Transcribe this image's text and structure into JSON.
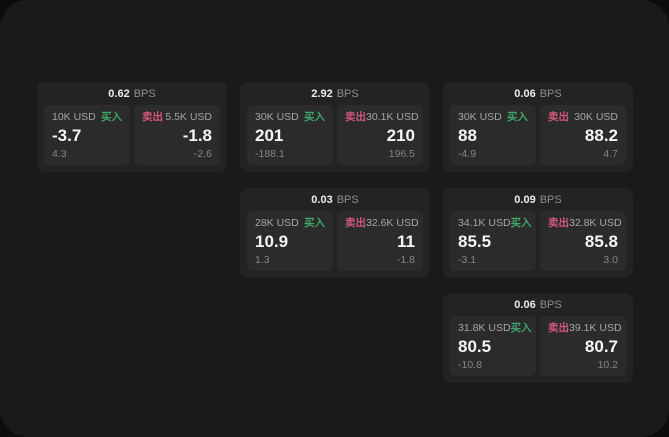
{
  "labels": {
    "buy": "买入",
    "sell": "卖出",
    "bps_unit": "BPS"
  },
  "colors": {
    "page_bg": "#0d0d0e",
    "window_bg": "#1a1a1b",
    "card_bg": "#232324",
    "panel_bg": "#2b2b2c",
    "text_primary": "#f5f5f6",
    "text_secondary": "#a6a6aa",
    "text_muted": "#85858a",
    "buy_green": "#3fa56b",
    "sell_red": "#d25679"
  },
  "cards": [
    {
      "bps": "0.62",
      "buy": {
        "size": "10K USD",
        "price": "-3.7",
        "delta": "4.3"
      },
      "sell": {
        "size": "5.5K USD",
        "price": "-1.8",
        "delta": "-2.6"
      }
    },
    {
      "bps": "2.92",
      "buy": {
        "size": "30K USD",
        "price": "201",
        "delta": "-188.1"
      },
      "sell": {
        "size": "30.1K USD",
        "price": "210",
        "delta": "196.5"
      }
    },
    {
      "bps": "0.06",
      "buy": {
        "size": "30K USD",
        "price": "88",
        "delta": "-4.9"
      },
      "sell": {
        "size": "30K USD",
        "price": "88.2",
        "delta": "4.7"
      }
    },
    {
      "bps": "0.03",
      "buy": {
        "size": "28K USD",
        "price": "10.9",
        "delta": "1.3"
      },
      "sell": {
        "size": "32.6K USD",
        "price": "11",
        "delta": "-1.8"
      }
    },
    {
      "bps": "0.09",
      "buy": {
        "size": "34.1K USD",
        "price": "85.5",
        "delta": "-3.1"
      },
      "sell": {
        "size": "32.8K USD",
        "price": "85.8",
        "delta": "3.0"
      }
    },
    {
      "bps": "0.06",
      "buy": {
        "size": "31.8K USD",
        "price": "80.5",
        "delta": "-10.8"
      },
      "sell": {
        "size": "39.1K USD",
        "price": "80.7",
        "delta": "10.2"
      }
    }
  ]
}
